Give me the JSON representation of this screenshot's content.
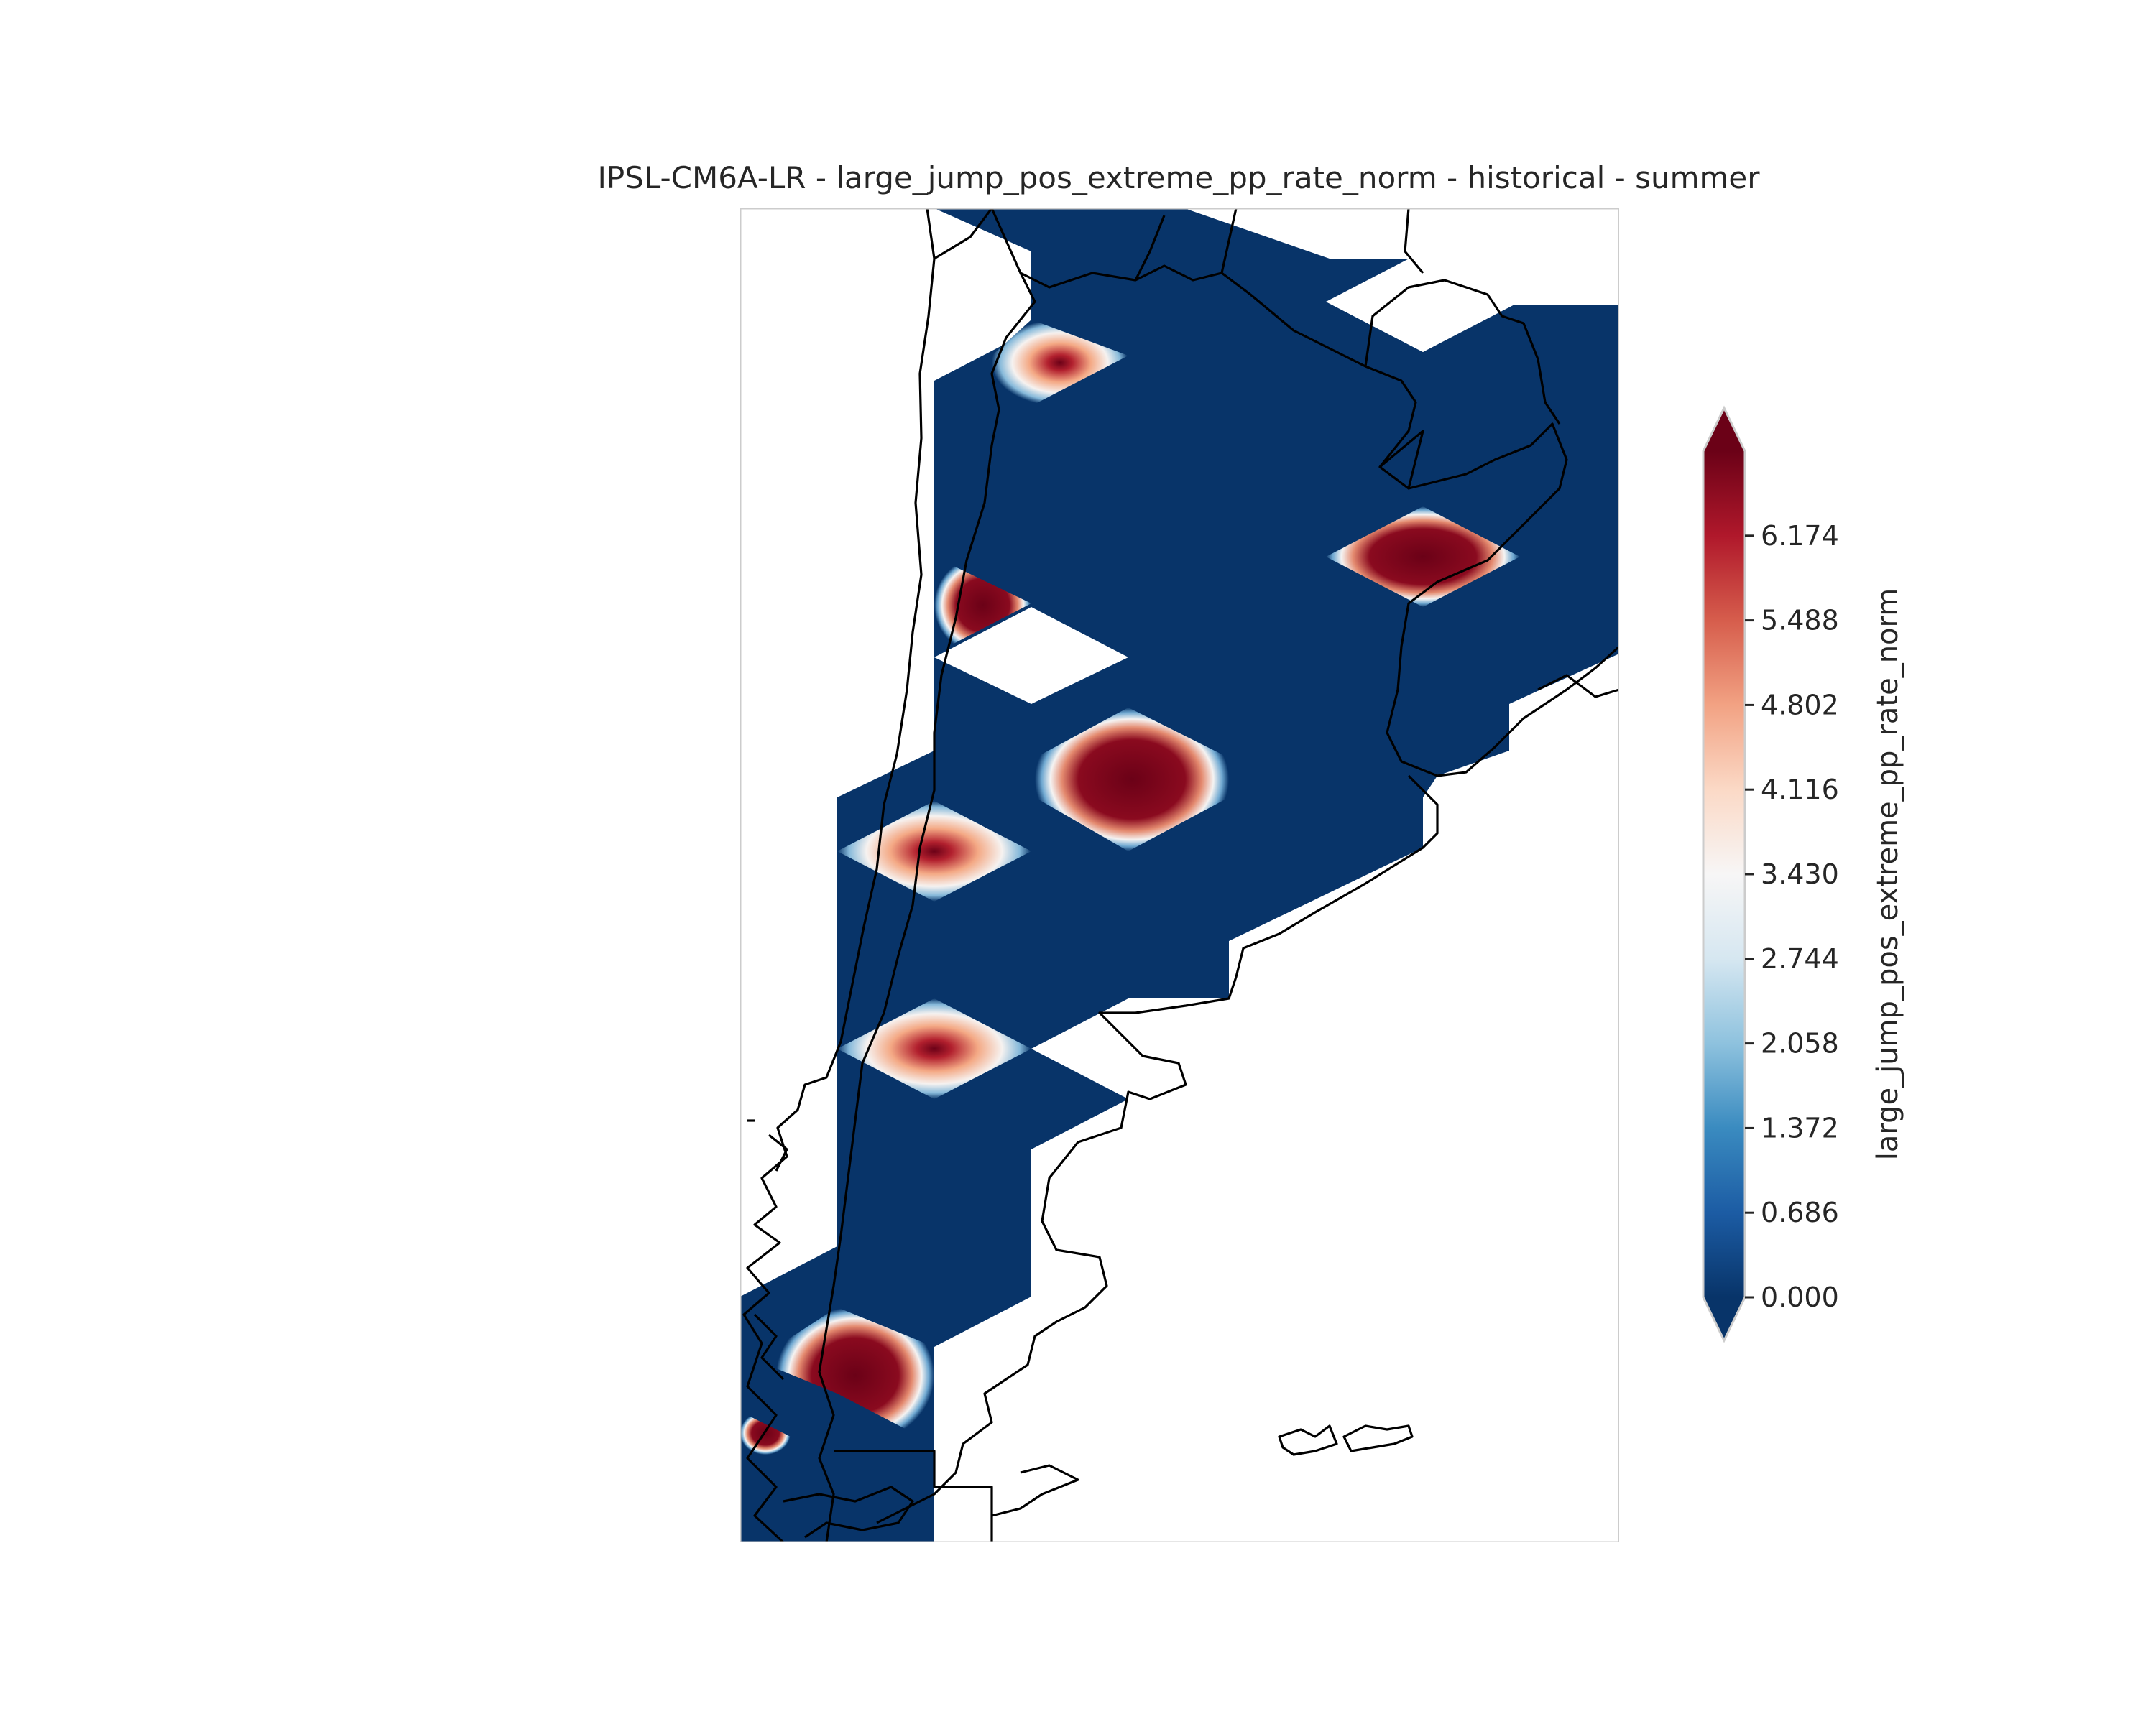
{
  "title": "IPSL-CM6A-LR - large_jump_pos_extreme_pp_rate_norm - historical - summer",
  "colorbar": {
    "label": "large_jump_pos_extreme_pp_rate_norm",
    "min": 0.0,
    "max": 6.86,
    "extend": "both",
    "colormap": "RdBu_r",
    "ticks": [
      "0.000",
      "0.686",
      "1.372",
      "2.058",
      "2.744",
      "3.430",
      "4.116",
      "4.802",
      "5.488",
      "6.174"
    ],
    "tick_values": [
      0.0,
      0.686,
      1.372,
      2.058,
      2.744,
      3.43,
      4.116,
      4.802,
      5.488,
      6.174
    ]
  },
  "colors": {
    "low": "#083469",
    "high": "#6b0117",
    "frame": "#cccccc",
    "coastline": "#000000"
  }
}
